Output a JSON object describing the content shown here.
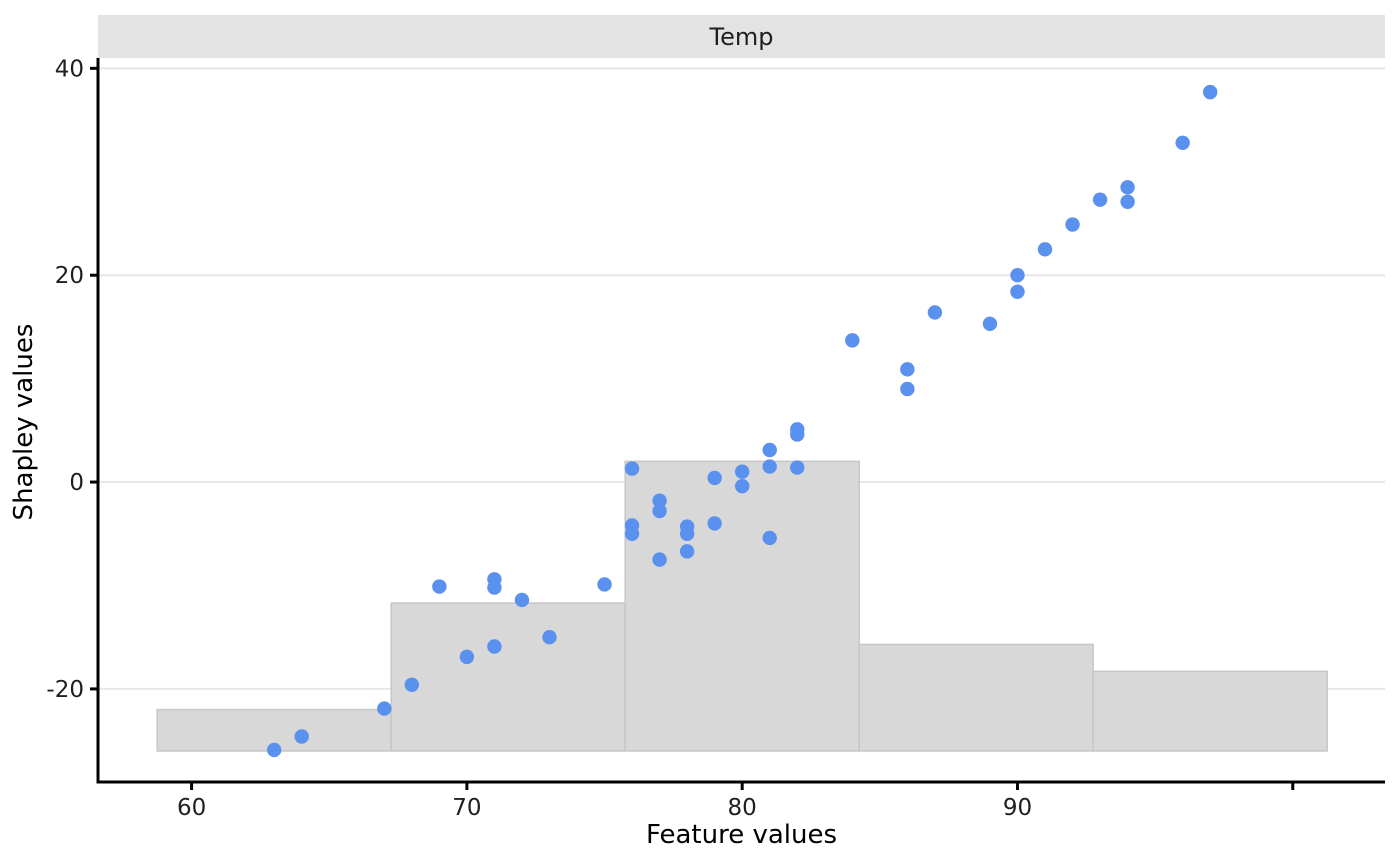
{
  "figure": {
    "strip_title": "Temp",
    "x_axis_title": "Feature values",
    "y_axis_title": "Shapley values"
  },
  "colors": {
    "point": "#5a90ee",
    "bar_fill": "#d8d8d8",
    "bar_stroke": "#c6c6c6",
    "strip_bg": "#e3e3e3",
    "gridline": "#e7e7e7",
    "axis": "#000000",
    "tick_label": "#1f1f1f",
    "background": "#ffffff"
  },
  "chart_data": {
    "type": "scatter",
    "title": "Temp",
    "xlabel": "Feature values",
    "ylabel": "Shapley values",
    "xlim": [
      56.6,
      103.35
    ],
    "ylim": [
      -29,
      41
    ],
    "grid": "horizontal-major-only",
    "legend": "none",
    "x_ticks": {
      "values": [
        60,
        70,
        80,
        90,
        100
      ],
      "labels": [
        "60",
        "70",
        "80",
        "90",
        ""
      ]
    },
    "y_ticks": {
      "values": [
        -20,
        0,
        20,
        40
      ],
      "labels": [
        "-20",
        "0",
        "20",
        "40"
      ]
    },
    "series": [
      {
        "name": "shapley-values-scatter",
        "type": "scatter",
        "points": [
          [
            63,
            -25.9
          ],
          [
            64,
            -24.6
          ],
          [
            67,
            -21.9
          ],
          [
            68,
            -19.6
          ],
          [
            69,
            -10.1
          ],
          [
            70,
            -16.9
          ],
          [
            71,
            -9.4
          ],
          [
            71,
            -10.2
          ],
          [
            71,
            -15.9
          ],
          [
            72,
            -11.4
          ],
          [
            73,
            -15.0
          ],
          [
            75,
            -9.9
          ],
          [
            76,
            1.3
          ],
          [
            76,
            -4.2
          ],
          [
            76,
            -5.0
          ],
          [
            77,
            -1.8
          ],
          [
            77,
            -2.8
          ],
          [
            77,
            -7.5
          ],
          [
            78,
            -4.3
          ],
          [
            78,
            -5.0
          ],
          [
            78,
            -6.7
          ],
          [
            79,
            0.4
          ],
          [
            79,
            -4.0
          ],
          [
            80,
            1.0
          ],
          [
            80,
            -0.4
          ],
          [
            81,
            3.1
          ],
          [
            81,
            1.5
          ],
          [
            81,
            -5.4
          ],
          [
            82,
            5.1
          ],
          [
            82,
            4.6
          ],
          [
            82,
            1.4
          ],
          [
            84,
            13.7
          ],
          [
            86,
            10.9
          ],
          [
            86,
            9.0
          ],
          [
            87,
            16.4
          ],
          [
            89,
            15.3
          ],
          [
            90,
            20.0
          ],
          [
            90,
            18.4
          ],
          [
            91,
            22.5
          ],
          [
            92,
            24.9
          ],
          [
            93,
            27.3
          ],
          [
            94,
            28.5
          ],
          [
            94,
            27.1
          ],
          [
            96,
            32.8
          ],
          [
            97,
            37.7
          ]
        ]
      },
      {
        "name": "feature-value-histogram",
        "type": "histogram-background",
        "breaks": [
          58.75,
          67.25,
          75.75,
          84.25,
          92.75,
          101.25
        ],
        "tops": [
          -22.0,
          -11.7,
          2.0,
          -15.7,
          -18.3
        ],
        "baseline": -26.0
      }
    ]
  }
}
